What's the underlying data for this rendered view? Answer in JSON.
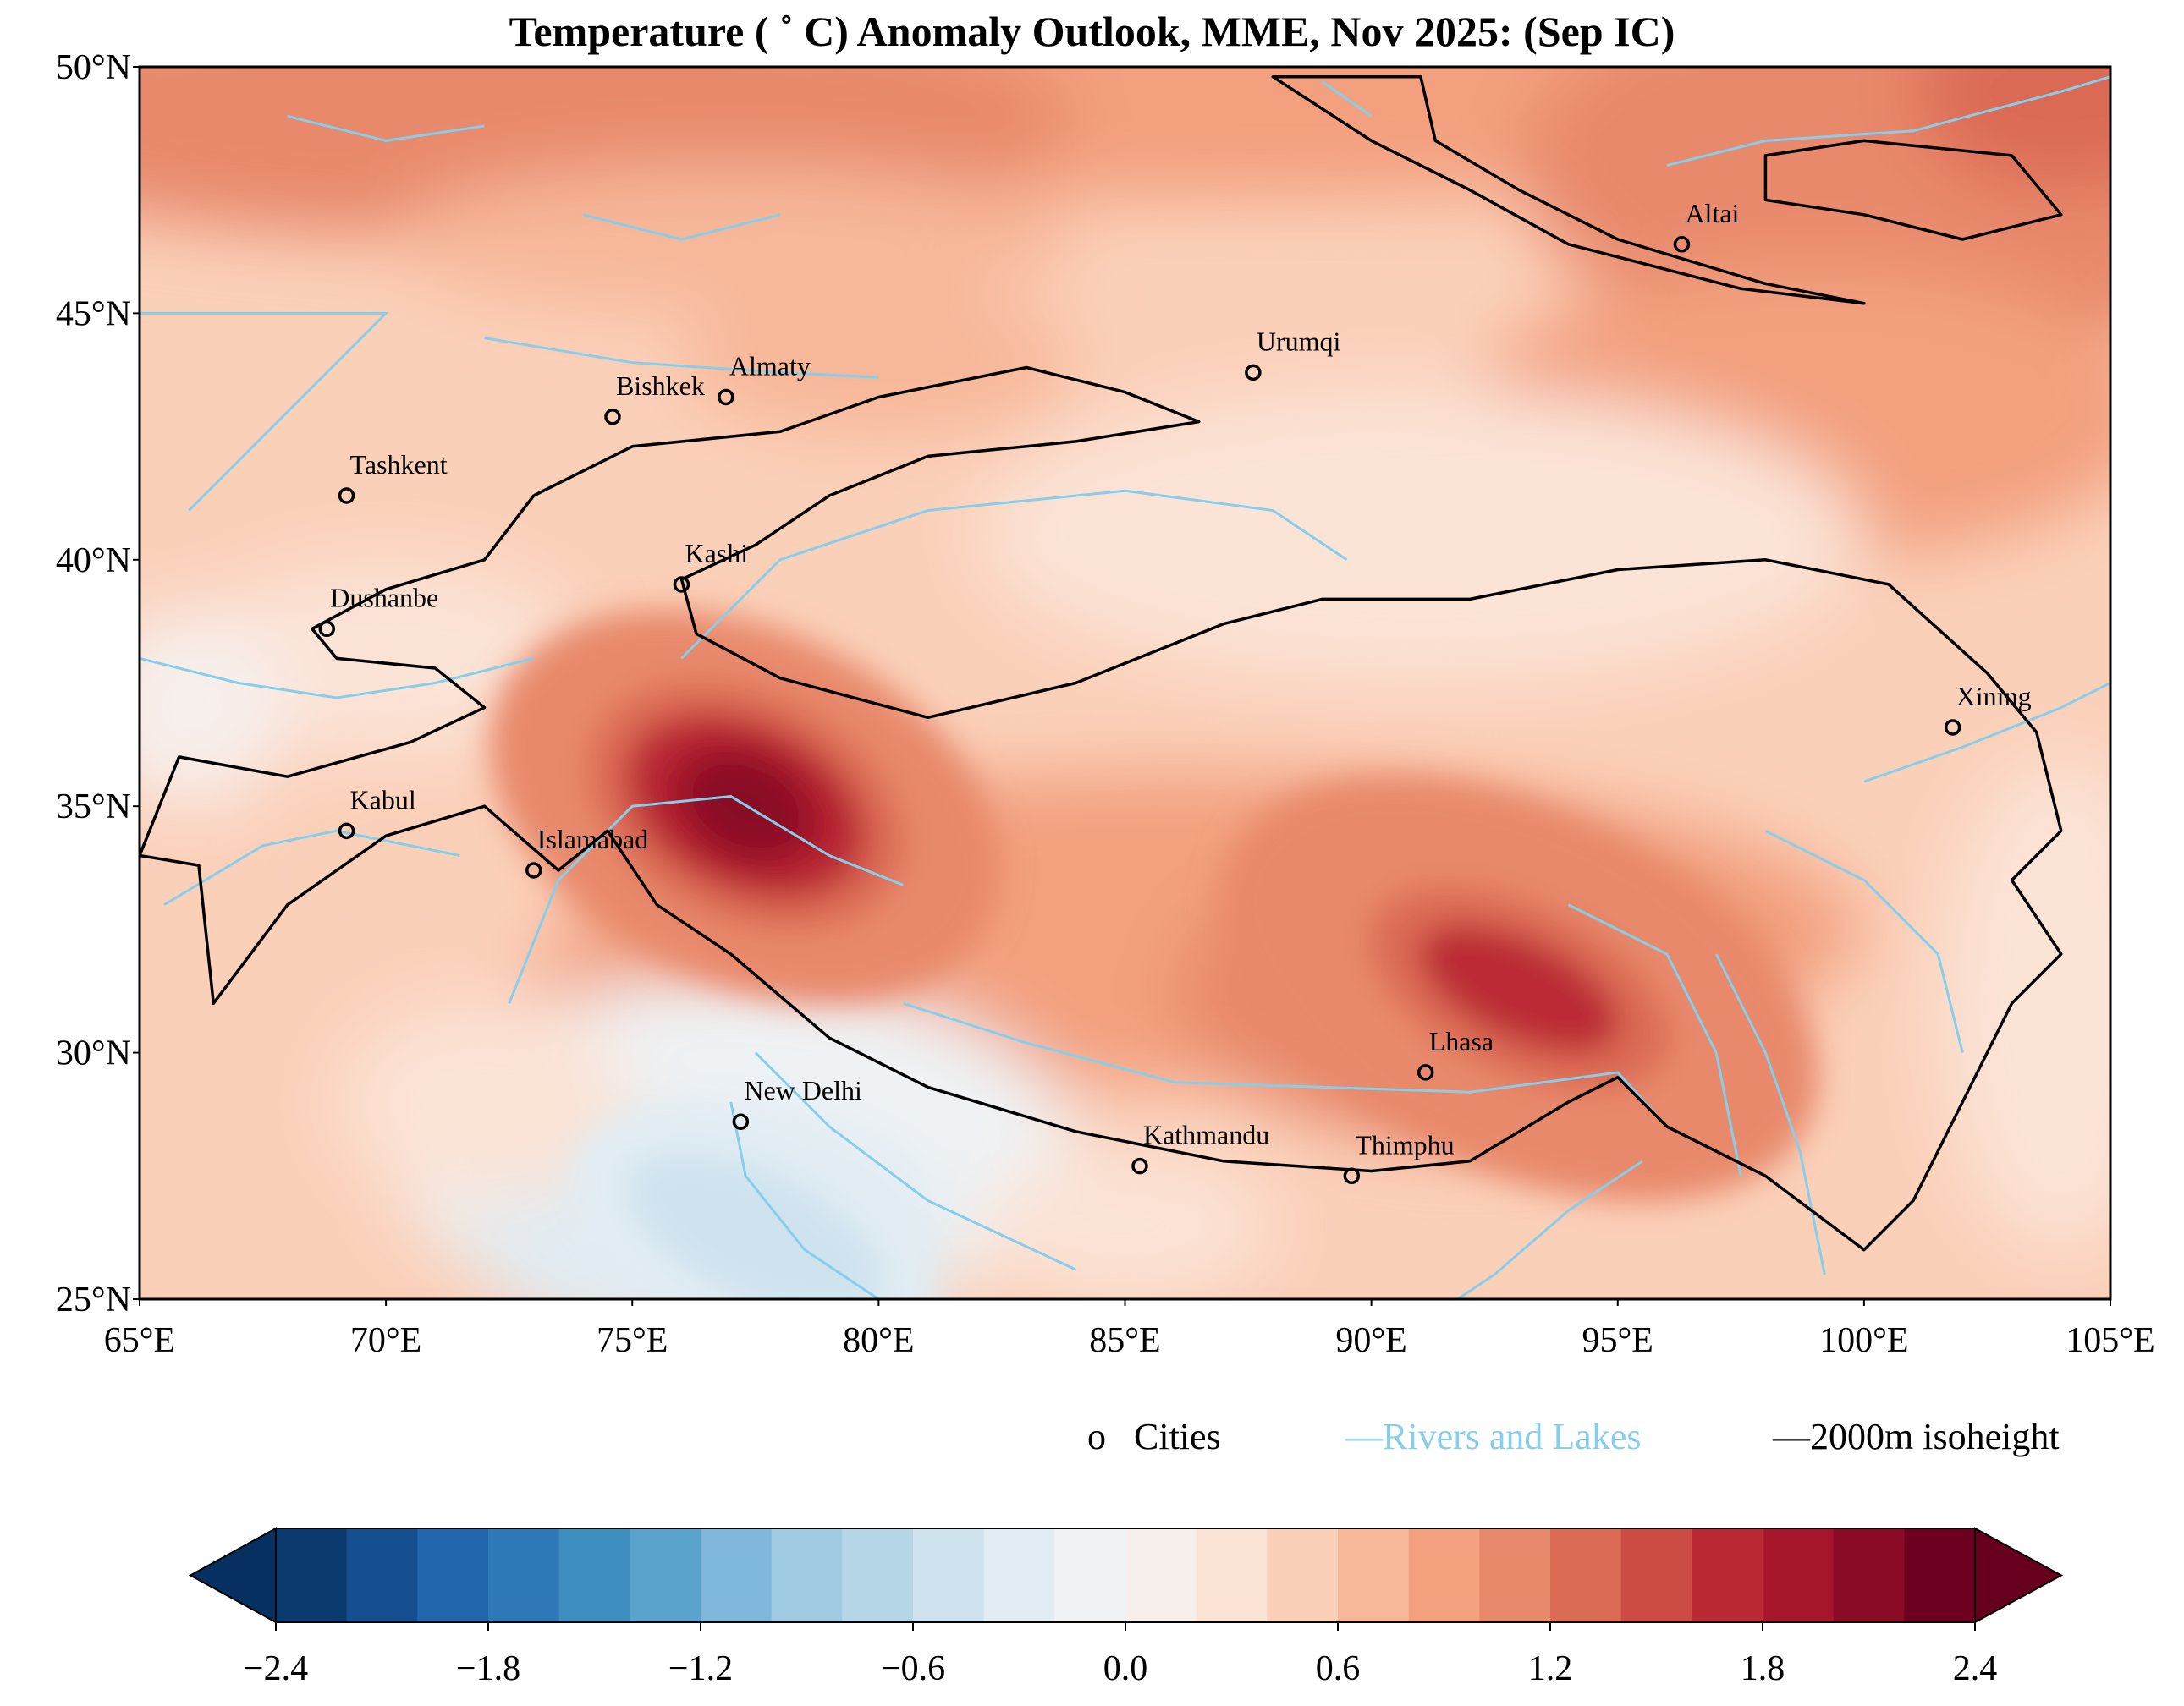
{
  "title": "Temperature ( ˚ C) Anomaly Outlook, MME, Nov  2025:  (Sep IC)",
  "map": {
    "lon_range": [
      65,
      105
    ],
    "lat_range": [
      25,
      50
    ],
    "x_ticks": [
      "65°E",
      "70°E",
      "75°E",
      "80°E",
      "85°E",
      "90°E",
      "95°E",
      "100°E",
      "105°E"
    ],
    "y_ticks": [
      "25°N",
      "30°N",
      "35°N",
      "40°N",
      "45°N",
      "50°N"
    ],
    "cities": [
      {
        "name": "Altai",
        "lon": 96.3,
        "lat": 46.4
      },
      {
        "name": "Urumqi",
        "lon": 87.6,
        "lat": 43.8
      },
      {
        "name": "Almaty",
        "lon": 76.9,
        "lat": 43.3
      },
      {
        "name": "Bishkek",
        "lon": 74.6,
        "lat": 42.9
      },
      {
        "name": "Tashkent",
        "lon": 69.2,
        "lat": 41.3
      },
      {
        "name": "Kashi",
        "lon": 76.0,
        "lat": 39.5
      },
      {
        "name": "Dushanbe",
        "lon": 68.8,
        "lat": 38.6
      },
      {
        "name": "Xining",
        "lon": 101.8,
        "lat": 36.6
      },
      {
        "name": "Kabul",
        "lon": 69.2,
        "lat": 34.5
      },
      {
        "name": "Islamabad",
        "lon": 73.0,
        "lat": 33.7
      },
      {
        "name": "Lhasa",
        "lon": 91.1,
        "lat": 29.6
      },
      {
        "name": "New Delhi",
        "lon": 77.2,
        "lat": 28.6
      },
      {
        "name": "Kathmandu",
        "lon": 85.3,
        "lat": 27.7
      },
      {
        "name": "Thimphu",
        "lon": 89.6,
        "lat": 27.5
      }
    ],
    "anomaly_features": [
      {
        "lon": 77.5,
        "lat": 35.0,
        "value": 2.1
      },
      {
        "lon": 93.0,
        "lat": 31.2,
        "value": 1.5
      },
      {
        "lon": 77.0,
        "lat": 26.5,
        "value": -0.5
      }
    ]
  },
  "legend": {
    "cities_marker": "o",
    "cities_label": "Cities",
    "rivers_label": "Rivers and Lakes",
    "isoheight_label": "2000m isoheight",
    "river_color": "#87ceeb",
    "isoheight_color": "#000000"
  },
  "colorbar": {
    "min": -2.4,
    "max": 2.4,
    "step": 0.2,
    "tick_labels": [
      "−2.4",
      "−1.8",
      "−1.2",
      "−0.6",
      "0.0",
      "0.6",
      "1.2",
      "1.8",
      "2.4"
    ],
    "under_color": "#053061",
    "over_color": "#67001f",
    "colors": [
      "#0a3a6e",
      "#154f8f",
      "#2166ac",
      "#2e78b7",
      "#3f8ec0",
      "#5aa3cc",
      "#7fb8da",
      "#9fcae1",
      "#b6d7e8",
      "#cfe3ef",
      "#e1ecf3",
      "#eff3f5",
      "#f7efec",
      "#fbe3d6",
      "#fbd0b9",
      "#f7b799",
      "#f3a07f",
      "#e8896c",
      "#db6b55",
      "#cc4c43",
      "#bb2a34",
      "#a6162b",
      "#8a0b25",
      "#6d0020"
    ]
  }
}
